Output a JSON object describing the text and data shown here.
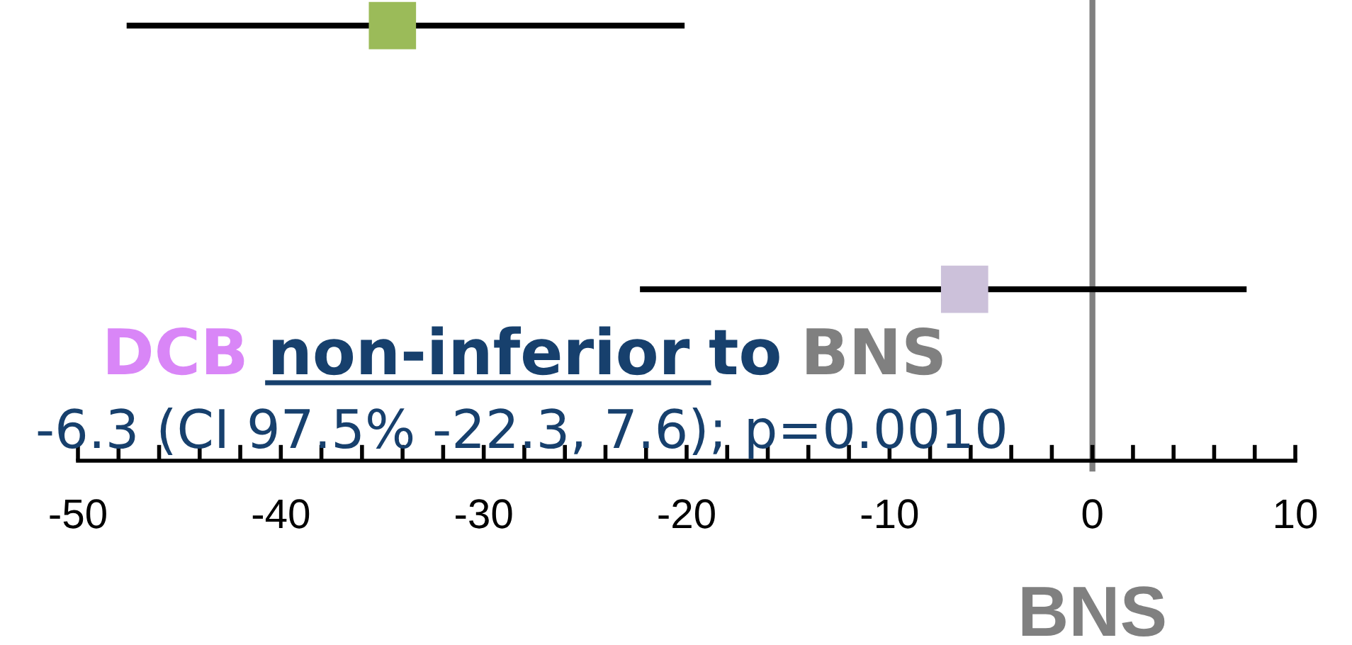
{
  "chart_data": {
    "type": "scatter",
    "orientation": "horizontal",
    "categories": [
      null,
      null
    ],
    "values": [
      -34.5,
      -6.3
    ],
    "errors": [
      [
        -47.6,
        -20.1
      ],
      [
        -22.3,
        7.6
      ]
    ],
    "colors": [
      "#9bbb59",
      "#ccc1da"
    ],
    "marker": "square",
    "xlim": [
      -50,
      10
    ],
    "xticks": [
      -50,
      {
        "value": -48,
        "label": null
      },
      {
        "value": -46,
        "label": null
      },
      {
        "value": -44,
        "label": null
      },
      {
        "value": -42,
        "label": null
      },
      -40,
      {
        "value": -38,
        "label": null
      },
      {
        "value": -36,
        "label": null
      },
      {
        "value": -34,
        "label": null
      },
      {
        "value": -32,
        "label": null
      },
      -30,
      {
        "value": -28,
        "label": null
      },
      {
        "value": -26,
        "label": null
      },
      {
        "value": -24,
        "label": null
      },
      {
        "value": -22,
        "label": null
      },
      -20,
      {
        "value": -18,
        "label": null
      },
      {
        "value": -16,
        "label": null
      },
      {
        "value": -14,
        "label": null
      },
      {
        "value": -12,
        "label": null
      },
      -10,
      {
        "value": -8,
        "label": null
      },
      {
        "value": -6,
        "label": null
      },
      {
        "value": -4,
        "label": null
      },
      {
        "value": -2,
        "label": null
      },
      0,
      {
        "value": 2,
        "label": null
      },
      {
        "value": 4,
        "label": null
      },
      {
        "value": 6,
        "label": null
      },
      {
        "value": 8,
        "label": null
      },
      10
    ],
    "tick_labels": "x",
    "ref_lines": [
      {
        "axis": "x",
        "value": 0,
        "label": "BNS",
        "color": "#808080"
      }
    ],
    "annotations": [
      "DCB non-inferior to BNS",
      "-6.3 (CI 97.5% -22.3, 7.6); p=0.0010"
    ]
  }
}
